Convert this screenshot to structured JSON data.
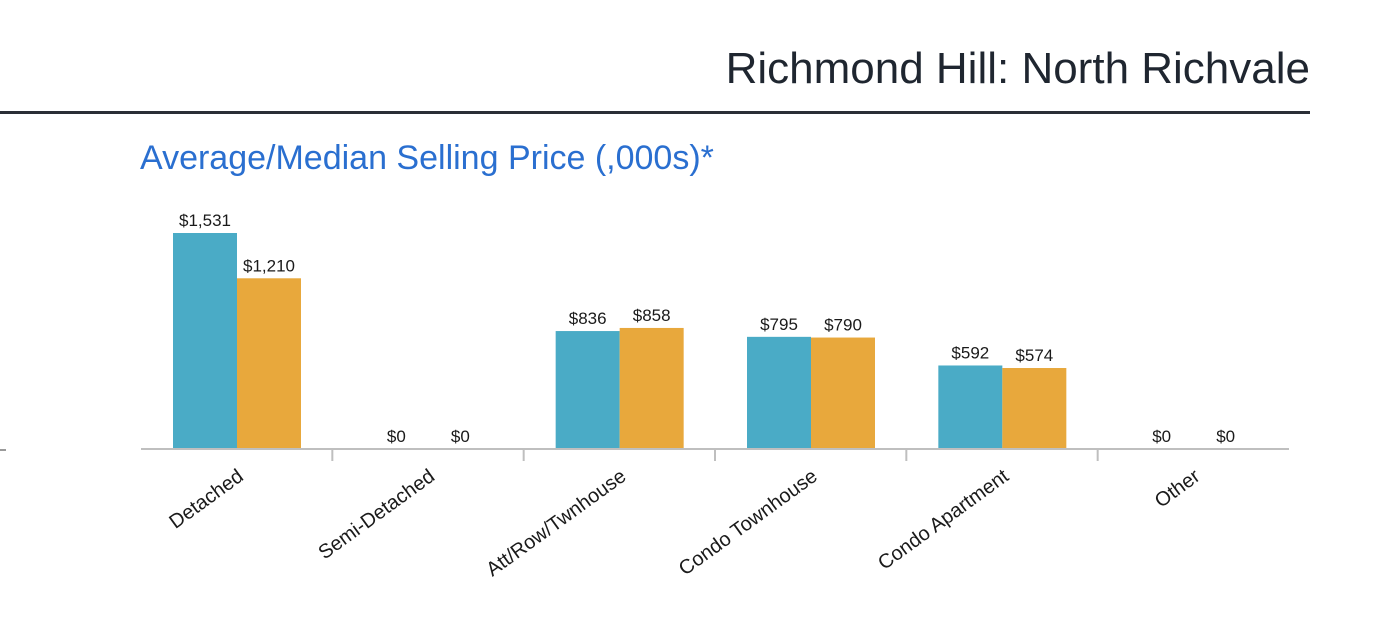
{
  "header": {
    "title": "Richmond Hill: North Richvale"
  },
  "chart_data": {
    "type": "bar",
    "title": "Average/Median Selling Price (,000s)*",
    "xlabel": "",
    "ylabel": "",
    "ylim": [
      0,
      1650
    ],
    "grid": false,
    "categories": [
      "Detached",
      "Semi-Detached",
      "Att/Row/Twnhouse",
      "Condo Townhouse",
      "Condo Apartment",
      "Other"
    ],
    "series": [
      {
        "values": [
          1531,
          0,
          836,
          795,
          592,
          0
        ],
        "labels": [
          "$1,531",
          "$0",
          "$836",
          "$795",
          "$592",
          "$0"
        ],
        "color": "#4aabc6"
      },
      {
        "values": [
          1210,
          0,
          858,
          790,
          574,
          0
        ],
        "labels": [
          "$1,210",
          "$0",
          "$858",
          "$790",
          "$574",
          "$0"
        ],
        "color": "#e8a83c"
      }
    ]
  }
}
